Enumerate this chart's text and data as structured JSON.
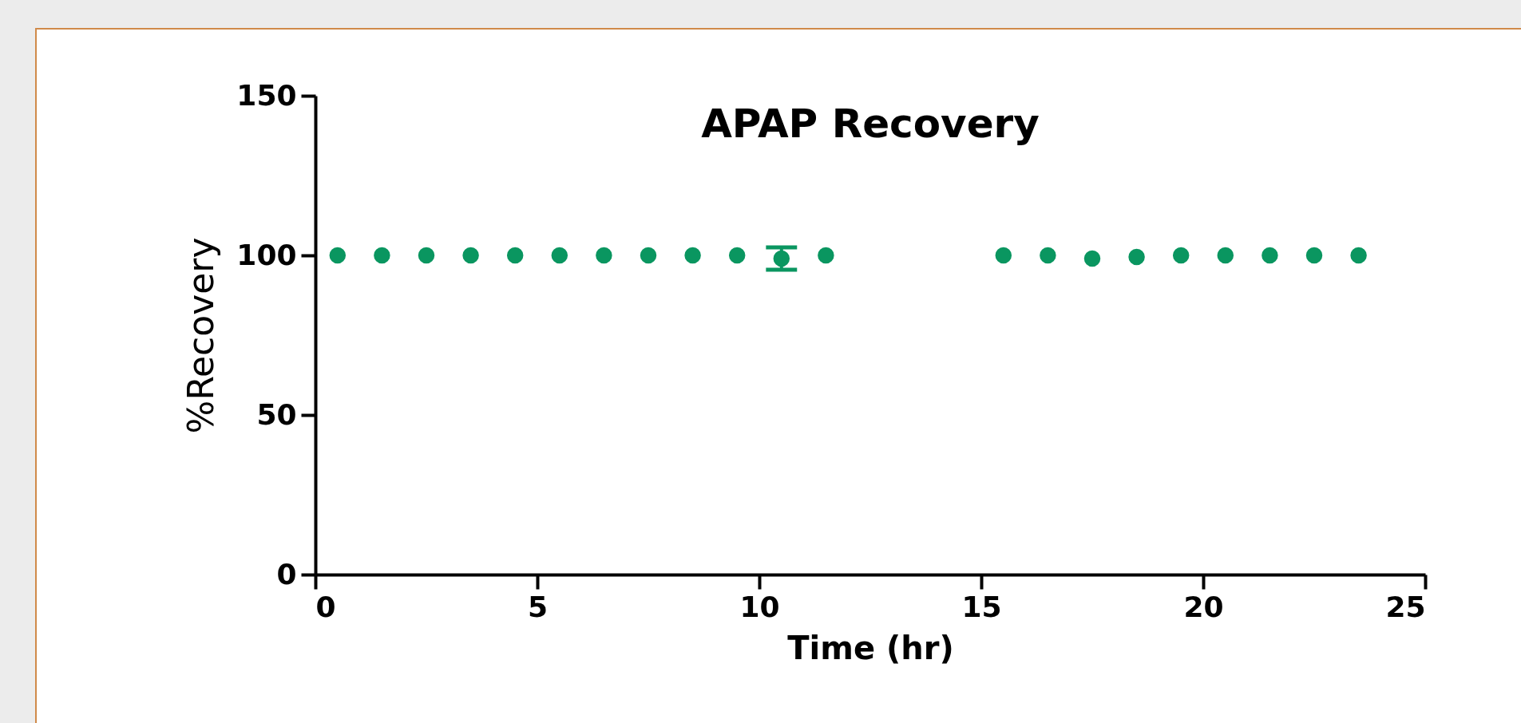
{
  "chart_data": {
    "type": "scatter",
    "title": "APAP Recovery",
    "xlabel": "Time (hr)",
    "ylabel": "%Recovery",
    "x": [
      0.5,
      1.5,
      2.5,
      3.5,
      4.5,
      5.5,
      6.5,
      7.5,
      8.5,
      9.5,
      10.5,
      11.5,
      15.5,
      16.5,
      17.5,
      18.5,
      19.5,
      20.5,
      21.5,
      22.5,
      23.5
    ],
    "values": [
      100,
      100,
      100,
      100,
      100,
      100,
      100,
      100,
      100,
      100,
      99,
      100,
      100,
      100,
      99,
      99.5,
      100,
      100,
      100,
      100,
      100
    ],
    "errors": [
      null,
      null,
      null,
      null,
      null,
      null,
      null,
      null,
      null,
      null,
      3.5,
      null,
      null,
      null,
      null,
      null,
      null,
      null,
      null,
      null,
      null
    ],
    "color": "#0a9660",
    "marker": "circle",
    "grid": false,
    "legend": false,
    "xlim": [
      0,
      25
    ],
    "xticks": [
      0,
      5,
      10,
      15,
      20,
      25
    ],
    "ylim": [
      0,
      150
    ],
    "yticks": [
      0,
      50,
      100,
      150
    ]
  }
}
